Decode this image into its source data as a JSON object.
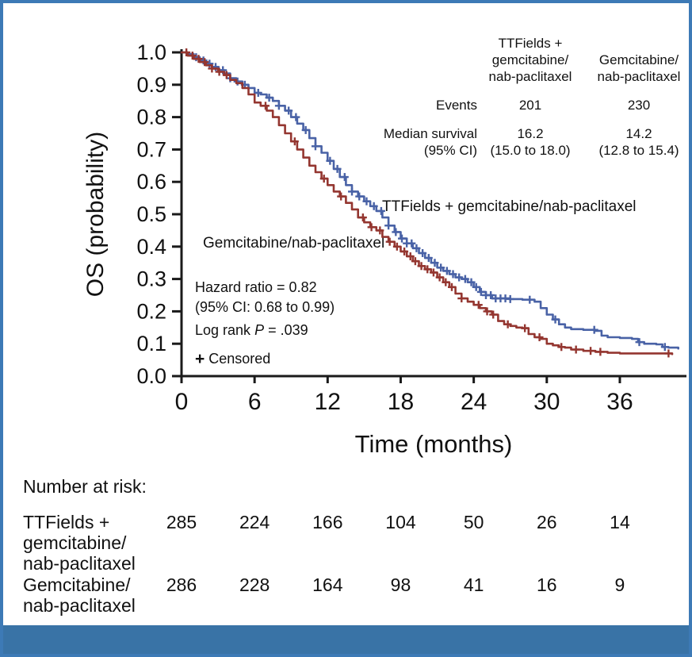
{
  "colors": {
    "frame_border": "#3d7ab6",
    "footer_bar": "#3973a6",
    "axis": "#1a1a1a",
    "tt_blue": "#4962a6",
    "gnp_red": "#943630"
  },
  "chart_data": {
    "type": "line",
    "subtype": "kaplan-meier-step",
    "xlabel": "Time (months)",
    "ylabel": "OS (probability)",
    "xlim": [
      0,
      41.5
    ],
    "ylim": [
      0.0,
      1.0
    ],
    "x_ticks": [
      0,
      6,
      12,
      18,
      24,
      30,
      36
    ],
    "y_ticks": [
      0.0,
      0.1,
      0.2,
      0.3,
      0.4,
      0.5,
      0.6,
      0.7,
      0.8,
      0.9,
      1.0
    ],
    "grid": false,
    "series": [
      {
        "name": "TTFields + gemcitabine/nab-paclitaxel",
        "color": "#4962a6",
        "points": [
          [
            0,
            1.0
          ],
          [
            0.5,
            0.995
          ],
          [
            1,
            0.985
          ],
          [
            1.5,
            0.975
          ],
          [
            2,
            0.965
          ],
          [
            2.5,
            0.955
          ],
          [
            3,
            0.945
          ],
          [
            3.5,
            0.935
          ],
          [
            4,
            0.92
          ],
          [
            4.5,
            0.91
          ],
          [
            5,
            0.9
          ],
          [
            5.5,
            0.89
          ],
          [
            6,
            0.875
          ],
          [
            6.5,
            0.87
          ],
          [
            7,
            0.86
          ],
          [
            7.5,
            0.85
          ],
          [
            8,
            0.835
          ],
          [
            8.5,
            0.82
          ],
          [
            9,
            0.8
          ],
          [
            9.5,
            0.78
          ],
          [
            10,
            0.76
          ],
          [
            10.5,
            0.735
          ],
          [
            11,
            0.71
          ],
          [
            11.5,
            0.69
          ],
          [
            12,
            0.665
          ],
          [
            12.5,
            0.64
          ],
          [
            13,
            0.615
          ],
          [
            13.5,
            0.59
          ],
          [
            14,
            0.57
          ],
          [
            14.5,
            0.555
          ],
          [
            15,
            0.54
          ],
          [
            15.5,
            0.525
          ],
          [
            16,
            0.51
          ],
          [
            16.5,
            0.49
          ],
          [
            17,
            0.465
          ],
          [
            17.5,
            0.445
          ],
          [
            18,
            0.425
          ],
          [
            18.5,
            0.41
          ],
          [
            19,
            0.395
          ],
          [
            19.5,
            0.38
          ],
          [
            20,
            0.365
          ],
          [
            20.5,
            0.35
          ],
          [
            21,
            0.335
          ],
          [
            21.5,
            0.325
          ],
          [
            22,
            0.315
          ],
          [
            22.5,
            0.305
          ],
          [
            23,
            0.3
          ],
          [
            23.5,
            0.29
          ],
          [
            24,
            0.275
          ],
          [
            24.5,
            0.26
          ],
          [
            25,
            0.25
          ],
          [
            25.5,
            0.24
          ],
          [
            27,
            0.238
          ],
          [
            28,
            0.236
          ],
          [
            29,
            0.23
          ],
          [
            29.5,
            0.21
          ],
          [
            30,
            0.19
          ],
          [
            30.5,
            0.175
          ],
          [
            31,
            0.16
          ],
          [
            31.5,
            0.15
          ],
          [
            32,
            0.145
          ],
          [
            33,
            0.143
          ],
          [
            34,
            0.14
          ],
          [
            34.5,
            0.125
          ],
          [
            35,
            0.12
          ],
          [
            36,
            0.118
          ],
          [
            37,
            0.115
          ],
          [
            37.5,
            0.105
          ],
          [
            38,
            0.1
          ],
          [
            39,
            0.098
          ],
          [
            39.5,
            0.09
          ],
          [
            40,
            0.088
          ],
          [
            40.8,
            0.085
          ]
        ],
        "censor_months": [
          1.2,
          1.8,
          2.3,
          2.8,
          3.4,
          4.0,
          4.6,
          5.2,
          6.3,
          7.2,
          8.0,
          8.8,
          9.4,
          10.2,
          11.0,
          12.2,
          12.8,
          13.4,
          14.0,
          14.6,
          15.2,
          15.8,
          16.4,
          17.0,
          17.6,
          18.1,
          18.5,
          18.9,
          19.3,
          19.8,
          20.3,
          20.8,
          21.3,
          21.8,
          22.3,
          22.8,
          23.3,
          23.8,
          24.2,
          24.6,
          25.0,
          25.4,
          25.8,
          26.2,
          26.6,
          27.0,
          28.6,
          30.7,
          33.9,
          37.6,
          39.7
        ],
        "events": 201,
        "median_survival": "16.2",
        "median_ci": "(15.0 to 18.0)"
      },
      {
        "name": "Gemcitabine/nab-paclitaxel",
        "color": "#943630",
        "points": [
          [
            0,
            1.0
          ],
          [
            0.5,
            0.99
          ],
          [
            1,
            0.98
          ],
          [
            1.5,
            0.97
          ],
          [
            2,
            0.96
          ],
          [
            2.5,
            0.95
          ],
          [
            3,
            0.94
          ],
          [
            3.5,
            0.93
          ],
          [
            4,
            0.915
          ],
          [
            4.5,
            0.905
          ],
          [
            5,
            0.89
          ],
          [
            5.5,
            0.87
          ],
          [
            6,
            0.845
          ],
          [
            6.5,
            0.835
          ],
          [
            7,
            0.82
          ],
          [
            7.5,
            0.8
          ],
          [
            8,
            0.775
          ],
          [
            8.5,
            0.75
          ],
          [
            9,
            0.725
          ],
          [
            9.5,
            0.7
          ],
          [
            10,
            0.675
          ],
          [
            10.5,
            0.65
          ],
          [
            11,
            0.63
          ],
          [
            11.5,
            0.61
          ],
          [
            12,
            0.59
          ],
          [
            12.5,
            0.57
          ],
          [
            13,
            0.555
          ],
          [
            13.5,
            0.535
          ],
          [
            14,
            0.515
          ],
          [
            14.5,
            0.49
          ],
          [
            15,
            0.475
          ],
          [
            15.5,
            0.46
          ],
          [
            16,
            0.45
          ],
          [
            16.5,
            0.43
          ],
          [
            17,
            0.415
          ],
          [
            17.5,
            0.4
          ],
          [
            18,
            0.385
          ],
          [
            18.5,
            0.37
          ],
          [
            19,
            0.355
          ],
          [
            19.5,
            0.34
          ],
          [
            20,
            0.33
          ],
          [
            20.5,
            0.32
          ],
          [
            21,
            0.305
          ],
          [
            21.5,
            0.29
          ],
          [
            22,
            0.275
          ],
          [
            22.5,
            0.255
          ],
          [
            23,
            0.24
          ],
          [
            23.5,
            0.23
          ],
          [
            24,
            0.22
          ],
          [
            24.5,
            0.21
          ],
          [
            25,
            0.2
          ],
          [
            25.5,
            0.19
          ],
          [
            26,
            0.17
          ],
          [
            26.5,
            0.16
          ],
          [
            27,
            0.155
          ],
          [
            27.5,
            0.15
          ],
          [
            28,
            0.148
          ],
          [
            28.5,
            0.13
          ],
          [
            29,
            0.12
          ],
          [
            29.5,
            0.115
          ],
          [
            30,
            0.1
          ],
          [
            30.5,
            0.095
          ],
          [
            31,
            0.09
          ],
          [
            31.5,
            0.088
          ],
          [
            32,
            0.082
          ],
          [
            33,
            0.078
          ],
          [
            34,
            0.075
          ],
          [
            35,
            0.072
          ],
          [
            36,
            0.07
          ],
          [
            38,
            0.07
          ],
          [
            40.3,
            0.068
          ]
        ],
        "censor_months": [
          0.4,
          0.9,
          1.4,
          1.9,
          2.5,
          3.1,
          3.7,
          6.9,
          9.3,
          11.7,
          13.1,
          14.9,
          15.6,
          16.3,
          17.1,
          17.7,
          18.3,
          18.8,
          19.2,
          19.7,
          20.2,
          20.7,
          21.2,
          21.7,
          22.2,
          23.0,
          24.4,
          25.1,
          25.6,
          26.8,
          28.2,
          29.4,
          31.2,
          32.4,
          33.6,
          34.4,
          40.0
        ],
        "events": 230,
        "median_survival": "14.2",
        "median_ci": "(12.8 to 15.4)"
      }
    ]
  },
  "inset_table": {
    "col1_header": "TTFields +\ngemcitabine/\nnab-paclitaxel",
    "col2_header": "Gemcitabine/\nnab-paclitaxel",
    "rows": [
      {
        "label": "Events",
        "col1": "201",
        "col2": "230"
      },
      {
        "label": "Median survival\n(95% CI)",
        "col1": "16.2\n(15.0 to 18.0)",
        "col2": "14.2\n(12.8 to 15.4)"
      }
    ]
  },
  "annotations": {
    "hazard_ratio": "Hazard ratio = 0.82",
    "hazard_ci": "(95% CI: 0.68 to 0.99)",
    "log_rank_prefix": "Log rank ",
    "log_rank_symbol": "P",
    "log_rank_suffix": " = .039",
    "censored_marker": "+",
    "censored_label": " Censored"
  },
  "risk_table": {
    "title": "Number at risk:",
    "rows": [
      {
        "label": "TTFields +\ngemcitabine/\nnab-paclitaxel",
        "counts": [
          285,
          224,
          166,
          104,
          50,
          26,
          14
        ]
      },
      {
        "label": "Gemcitabine/\nnab-paclitaxel",
        "counts": [
          286,
          228,
          164,
          98,
          41,
          16,
          9
        ]
      }
    ]
  }
}
